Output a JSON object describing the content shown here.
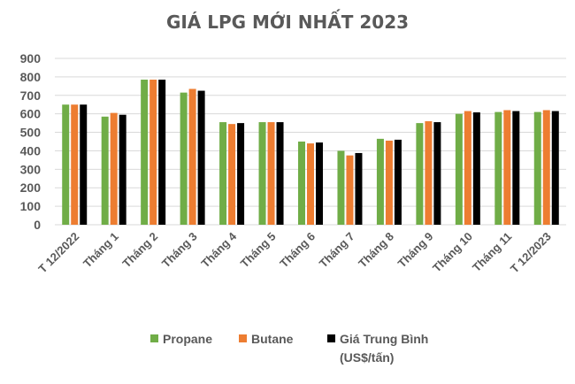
{
  "chart_data": {
    "type": "bar",
    "title": "GIÁ LPG MỚI NHẤT 2023",
    "xlabel": "",
    "ylabel": "",
    "ylim": [
      0,
      900
    ],
    "yticks": [
      0,
      100,
      200,
      300,
      400,
      500,
      600,
      700,
      800,
      900
    ],
    "grid": true,
    "legend_position": "bottom",
    "categories": [
      "T 12/2022",
      "Tháng 1",
      "Tháng 2",
      "Tháng 3",
      "Tháng 4",
      "Tháng 5",
      "Tháng 6",
      "Tháng 7",
      "Tháng 8",
      "Tháng 9",
      "Tháng 10",
      "Tháng 11",
      "T 12/2023"
    ],
    "series": [
      {
        "name": "Propane",
        "color": "#70ad47",
        "values": [
          650,
          585,
          785,
          715,
          555,
          555,
          450,
          400,
          465,
          550,
          600,
          610,
          610
        ]
      },
      {
        "name": "Butane",
        "color": "#ed7d31",
        "values": [
          650,
          605,
          785,
          735,
          545,
          555,
          440,
          375,
          455,
          560,
          615,
          620,
          620
        ]
      },
      {
        "name": "Giá Trung Bình (US$/tấn)",
        "legend_lines": [
          "Giá Trung Bình",
          "(US$/tấn)"
        ],
        "color": "#000000",
        "values": [
          650,
          595,
          785,
          725,
          550,
          555,
          445,
          388,
          460,
          555,
          608,
          615,
          615
        ]
      }
    ]
  }
}
